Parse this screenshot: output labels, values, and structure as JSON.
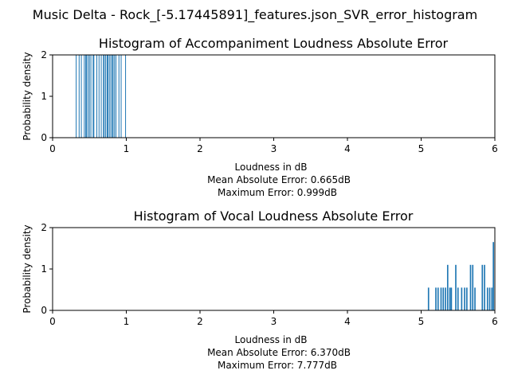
{
  "figure": {
    "suptitle": "Music Delta - Rock_[-5.17445891]_features.json_SVR_error_histogram"
  },
  "colors": {
    "bar": "#1f77b4",
    "axes": "#000000",
    "background": "#ffffff"
  },
  "chart_data": [
    {
      "type": "bar",
      "title": "Histogram of Accompaniment Loudness Absolute Error",
      "xlabel": "Loudness in dB",
      "ylabel": "Probability density",
      "xlim": [
        0,
        6
      ],
      "ylim": [
        0,
        2
      ],
      "xticks": [
        "0",
        "1",
        "2",
        "3",
        "4",
        "5",
        "6"
      ],
      "yticks": [
        "0",
        "1",
        "2"
      ],
      "grid": false,
      "bin_width": 0.00667,
      "annotations": [
        "Mean Absolute Error: 0.665dB",
        "Maximum Error: 0.999dB"
      ],
      "series": [
        {
          "values": [
            {
              "x": 0.32,
              "y": 2
            },
            {
              "x": 0.36,
              "y": 2
            },
            {
              "x": 0.39,
              "y": 2
            },
            {
              "x": 0.43,
              "y": 2
            },
            {
              "x": 0.45,
              "y": 2
            },
            {
              "x": 0.46,
              "y": 2
            },
            {
              "x": 0.48,
              "y": 2
            },
            {
              "x": 0.5,
              "y": 2
            },
            {
              "x": 0.52,
              "y": 2
            },
            {
              "x": 0.55,
              "y": 2
            },
            {
              "x": 0.56,
              "y": 2
            },
            {
              "x": 0.6,
              "y": 2
            },
            {
              "x": 0.63,
              "y": 2
            },
            {
              "x": 0.66,
              "y": 2
            },
            {
              "x": 0.69,
              "y": 2
            },
            {
              "x": 0.7,
              "y": 2
            },
            {
              "x": 0.72,
              "y": 2
            },
            {
              "x": 0.74,
              "y": 2
            },
            {
              "x": 0.75,
              "y": 2
            },
            {
              "x": 0.77,
              "y": 2
            },
            {
              "x": 0.79,
              "y": 2
            },
            {
              "x": 0.81,
              "y": 2
            },
            {
              "x": 0.82,
              "y": 2
            },
            {
              "x": 0.84,
              "y": 2
            },
            {
              "x": 0.86,
              "y": 2
            },
            {
              "x": 0.9,
              "y": 2
            },
            {
              "x": 0.93,
              "y": 2
            },
            {
              "x": 0.99,
              "y": 2
            }
          ]
        }
      ]
    },
    {
      "type": "bar",
      "title": "Histogram of Vocal Loudness Absolute Error",
      "xlabel": "Loudness in dB",
      "ylabel": "Probability density",
      "xlim": [
        0,
        6
      ],
      "ylim": [
        0,
        2
      ],
      "xticks": [
        "0",
        "1",
        "2",
        "3",
        "4",
        "5",
        "6"
      ],
      "yticks": [
        "0",
        "1",
        "2"
      ],
      "grid": false,
      "bin_width": 0.018,
      "annotations": [
        "Mean Absolute Error: 6.370dB",
        "Maximum Error: 7.777dB"
      ],
      "series": [
        {
          "values": [
            {
              "x": 5.1,
              "y": 0.55
            },
            {
              "x": 5.2,
              "y": 0.55
            },
            {
              "x": 5.23,
              "y": 0.55
            },
            {
              "x": 5.27,
              "y": 0.55
            },
            {
              "x": 5.3,
              "y": 0.55
            },
            {
              "x": 5.33,
              "y": 0.55
            },
            {
              "x": 5.36,
              "y": 1.1
            },
            {
              "x": 5.39,
              "y": 0.55
            },
            {
              "x": 5.41,
              "y": 0.55
            },
            {
              "x": 5.47,
              "y": 1.1
            },
            {
              "x": 5.5,
              "y": 0.55
            },
            {
              "x": 5.55,
              "y": 0.55
            },
            {
              "x": 5.59,
              "y": 0.55
            },
            {
              "x": 5.62,
              "y": 0.55
            },
            {
              "x": 5.67,
              "y": 1.1
            },
            {
              "x": 5.7,
              "y": 1.1
            },
            {
              "x": 5.73,
              "y": 0.55
            },
            {
              "x": 5.83,
              "y": 1.1
            },
            {
              "x": 5.86,
              "y": 1.1
            },
            {
              "x": 5.9,
              "y": 0.55
            },
            {
              "x": 5.93,
              "y": 0.55
            },
            {
              "x": 5.96,
              "y": 0.55
            },
            {
              "x": 5.98,
              "y": 1.65
            }
          ]
        }
      ]
    }
  ]
}
